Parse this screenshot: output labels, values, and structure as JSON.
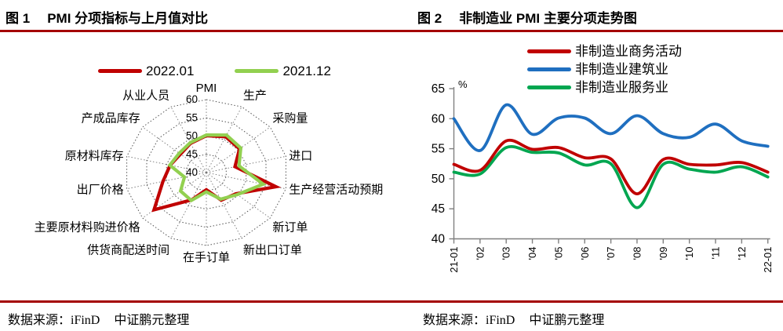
{
  "figure1": {
    "title_no": "图 1",
    "title_text": "PMI 分项指标与上月值对比",
    "source_prefix": "数据来源：iFinD",
    "source_suffix": "中证鹏元整理"
  },
  "figure2": {
    "title_no": "图 2",
    "title_text": "非制造业 PMI 主要分项走势图",
    "source_prefix": "数据来源：iFinD",
    "source_suffix": "中证鹏元整理"
  },
  "colors": {
    "rule": "#a40000",
    "radar_red": "#c00000",
    "radar_green": "#92d050",
    "line_red": "#c00000",
    "line_blue": "#1f6fc0",
    "line_green": "#00a650",
    "axis_gray": "#808080",
    "grid_dotted": "#555555"
  },
  "chart_data": [
    {
      "type": "radar",
      "title": "PMI 分项指标与上月值对比",
      "axes": [
        "PMI",
        "生产",
        "采购量",
        "进口",
        "生产经营活动预期",
        "新订单",
        "新出口订单",
        "在手订单",
        "供货商配送时间",
        "主要原材料购进价格",
        "出厂价格",
        "原材料库存",
        "产成品库存",
        "从业人员"
      ],
      "rmin": 40,
      "rmax": 60,
      "rings": [
        45,
        50,
        55,
        60
      ],
      "tick_labels": [
        40,
        45,
        50,
        55,
        60
      ],
      "legend_position": "top",
      "grid": "dotted",
      "series": [
        {
          "name": "2022.01",
          "color": "#c00000",
          "values": [
            50.1,
            50.9,
            50.4,
            47.2,
            57.5,
            49.3,
            48.4,
            44.7,
            48.3,
            56.4,
            50.9,
            49.1,
            48.1,
            48.9
          ]
        },
        {
          "name": "2021.12",
          "color": "#92d050",
          "values": [
            50.3,
            51.4,
            50.8,
            48.2,
            54.3,
            49.7,
            48.1,
            45.3,
            48.5,
            48.1,
            45.5,
            49.2,
            48.5,
            49.1
          ]
        }
      ]
    },
    {
      "type": "line",
      "title": "非制造业 PMI 主要分项走势图",
      "ylabel": "%",
      "ylim": [
        40,
        65
      ],
      "yticks": [
        40,
        45,
        50,
        55,
        60,
        65
      ],
      "grid": "off",
      "legend_position": "top",
      "categories": [
        "21-01",
        "'02",
        "'03",
        "'04",
        "'05",
        "'06",
        "'07",
        "'08",
        "'09",
        "'10",
        "'11",
        "'12",
        "22-01"
      ],
      "series": [
        {
          "name": "非制造业商务活动",
          "color": "#c00000",
          "values": [
            52.4,
            51.4,
            56.3,
            54.9,
            55.2,
            53.5,
            53.3,
            47.5,
            53.2,
            52.4,
            52.3,
            52.7,
            51.1
          ]
        },
        {
          "name": "非制造业建筑业",
          "color": "#1f6fc0",
          "values": [
            60.0,
            54.7,
            62.3,
            57.4,
            60.1,
            60.1,
            57.5,
            60.5,
            57.5,
            56.9,
            59.1,
            56.3,
            55.4
          ]
        },
        {
          "name": "非制造业服务业",
          "color": "#00a650",
          "values": [
            51.1,
            50.8,
            55.2,
            54.4,
            54.3,
            52.3,
            52.5,
            45.2,
            52.4,
            51.6,
            51.1,
            52.0,
            50.3
          ]
        }
      ]
    }
  ]
}
